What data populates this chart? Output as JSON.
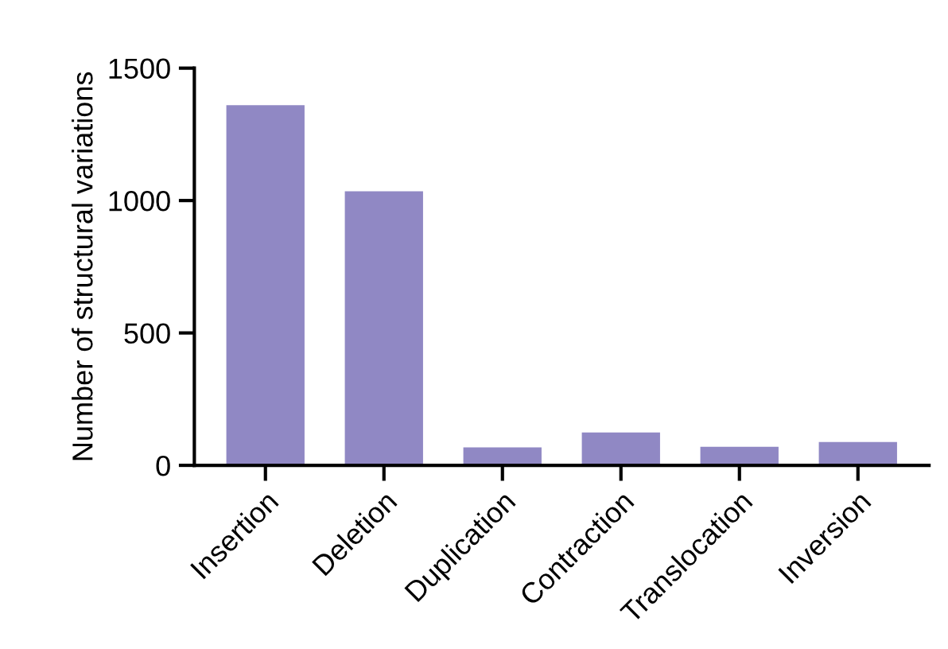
{
  "chart_data": {
    "type": "bar",
    "ylabel": "Number of structural variations",
    "categories": [
      "Insertion",
      "Deletion",
      "Duplication",
      "Contraction",
      "Translocation",
      "Inversion"
    ],
    "values": [
      1360,
      1035,
      68,
      124,
      70,
      88
    ],
    "color": "#9088c4",
    "ylim": [
      0,
      1500
    ],
    "yticks": [
      0,
      500,
      1000,
      1500
    ],
    "grid": false
  }
}
